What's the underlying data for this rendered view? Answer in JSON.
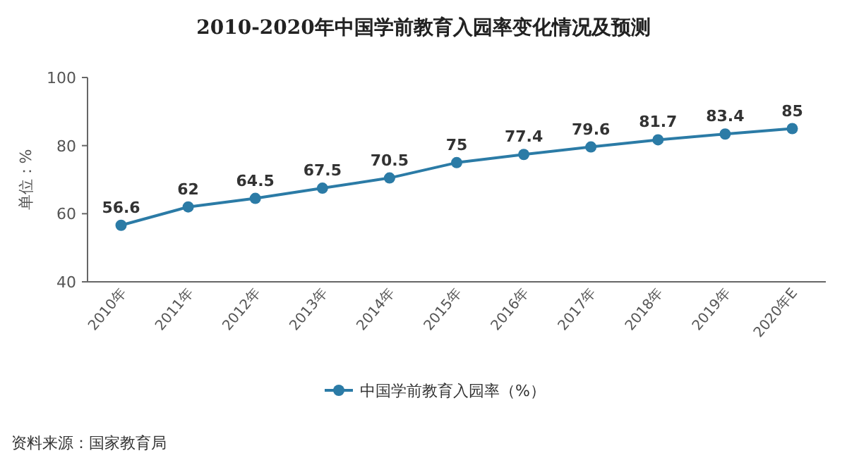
{
  "chart_data": {
    "type": "line",
    "title": "2010-2020年中国学前教育入园率变化情况及预测",
    "ylabel": "单位：%",
    "categories": [
      "2010年",
      "2011年",
      "2012年",
      "2013年",
      "2014年",
      "2015年",
      "2016年",
      "2017年",
      "2018年",
      "2019年",
      "2020年E"
    ],
    "series": [
      {
        "name": "中国学前教育入园率（%）",
        "color": "#2b7ba6",
        "values": [
          56.6,
          62,
          64.5,
          67.5,
          70.5,
          75,
          77.4,
          79.6,
          81.7,
          83.4,
          85
        ]
      }
    ],
    "ylim": [
      40,
      100
    ],
    "yticks": [
      40,
      60,
      80,
      100
    ],
    "grid": false,
    "legend": "bottom",
    "marker": "circle",
    "line_style": "solid",
    "data_labels": true,
    "annotations": [
      "资料来源：国家教育局"
    ]
  }
}
